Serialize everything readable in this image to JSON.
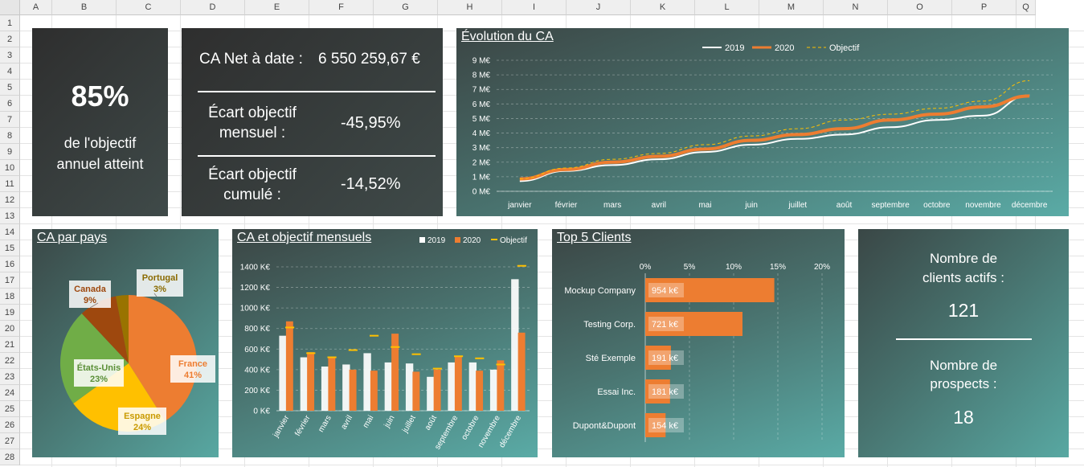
{
  "columns": [
    "A",
    "B",
    "C",
    "D",
    "E",
    "F",
    "G",
    "H",
    "I",
    "J",
    "K",
    "L",
    "M",
    "N",
    "O",
    "P",
    "Q"
  ],
  "rows": [
    "1",
    "2",
    "3",
    "4",
    "5",
    "6",
    "7",
    "8",
    "9",
    "10",
    "11",
    "12",
    "13",
    "14",
    "15",
    "16",
    "17",
    "18",
    "19",
    "20",
    "21",
    "22",
    "23",
    "24",
    "25",
    "26",
    "27",
    "28"
  ],
  "kpi": {
    "percent": "85%",
    "line1": "de l'objectif",
    "line2": "annuel atteint"
  },
  "ca": {
    "net_label": "CA Net à date :",
    "net_value": "6 550 259,67 €",
    "mensuel_label1": "Écart objectif",
    "mensuel_label2": "mensuel :",
    "mensuel_value": "-45,95%",
    "cumule_label1": "Écart objectif",
    "cumule_label2": "cumulé :",
    "cumule_value": "-14,52%"
  },
  "clients": {
    "actifs_label1": "Nombre de",
    "actifs_label2": "clients actifs :",
    "actifs_value": "121",
    "prospects_label1": "Nombre de",
    "prospects_label2": "prospects :",
    "prospects_value": "18"
  },
  "colors": {
    "c2019": "#ffffff",
    "c2020": "#ed7d31",
    "objectif": "#ffc000",
    "france": "#ed7d31",
    "espagne": "#ffc000",
    "etats_unis": "#70ad47",
    "canada": "#9e480e",
    "portugal": "#997300"
  },
  "chart_data": [
    {
      "type": "line",
      "title": "Évolution du CA",
      "categories": [
        "janvier",
        "février",
        "mars",
        "avril",
        "mai",
        "juin",
        "juillet",
        "août",
        "septembre",
        "octobre",
        "novembre",
        "décembre"
      ],
      "series": [
        {
          "name": "2019",
          "values": [
            0.7,
            1.4,
            1.8,
            2.2,
            2.7,
            3.2,
            3.6,
            3.9,
            4.4,
            4.9,
            5.2,
            6.6
          ]
        },
        {
          "name": "2020",
          "values": [
            0.85,
            1.5,
            2.0,
            2.4,
            2.9,
            3.5,
            3.9,
            4.3,
            4.9,
            5.3,
            5.8,
            6.55
          ]
        },
        {
          "name": "Objectif",
          "values": [
            0.85,
            1.6,
            2.2,
            2.6,
            3.2,
            3.8,
            4.3,
            4.9,
            5.3,
            5.7,
            6.2,
            7.6
          ]
        }
      ],
      "ylim": [
        0,
        9
      ],
      "yticks": [
        "0 M€",
        "1 M€",
        "2 M€",
        "3 M€",
        "4 M€",
        "5 M€",
        "6 M€",
        "7 M€",
        "8 M€",
        "9 M€"
      ],
      "legend": "top"
    },
    {
      "type": "pie",
      "title": "CA par pays",
      "slices": [
        {
          "label": "France",
          "pct": "41%",
          "value": 41
        },
        {
          "label": "Espagne",
          "pct": "24%",
          "value": 24
        },
        {
          "label": "États-Unis",
          "pct": "23%",
          "value": 23
        },
        {
          "label": "Canada",
          "pct": "9%",
          "value": 9
        },
        {
          "label": "Portugal",
          "pct": "3%",
          "value": 3
        }
      ]
    },
    {
      "type": "bar",
      "title": "CA et objectif mensuels",
      "categories": [
        "janvier",
        "février",
        "mars",
        "avril",
        "mai",
        "juin",
        "juillet",
        "août",
        "septembre",
        "octobre",
        "novembre",
        "décembre"
      ],
      "series": [
        {
          "name": "2019",
          "values": [
            730,
            520,
            430,
            450,
            560,
            470,
            460,
            330,
            470,
            470,
            400,
            1280
          ]
        },
        {
          "name": "2020",
          "values": [
            870,
            570,
            520,
            400,
            390,
            750,
            380,
            400,
            530,
            390,
            490,
            760
          ]
        },
        {
          "name": "Objectif",
          "values": [
            810,
            560,
            520,
            590,
            730,
            620,
            550,
            410,
            530,
            510,
            450,
            1410
          ]
        }
      ],
      "ylim": [
        0,
        1400
      ],
      "yticks": [
        "0 K€",
        "200 K€",
        "400 K€",
        "600 K€",
        "800 K€",
        "1000 K€",
        "1200 K€",
        "1400 K€"
      ],
      "legend": "top-right"
    },
    {
      "type": "bar",
      "title": "Top 5 Clients",
      "categories": [
        "Mockup Company",
        "Testing Corp.",
        "Sté Exemple",
        "Essai Inc.",
        "Dupont&Dupont"
      ],
      "values": [
        14.6,
        11.0,
        2.9,
        2.8,
        2.3
      ],
      "labels": [
        "954 k€",
        "721 k€",
        "191 k€",
        "181 k€",
        "154 k€"
      ],
      "xlim": [
        0,
        20
      ],
      "xticks": [
        "0%",
        "5%",
        "10%",
        "15%",
        "20%"
      ]
    }
  ]
}
